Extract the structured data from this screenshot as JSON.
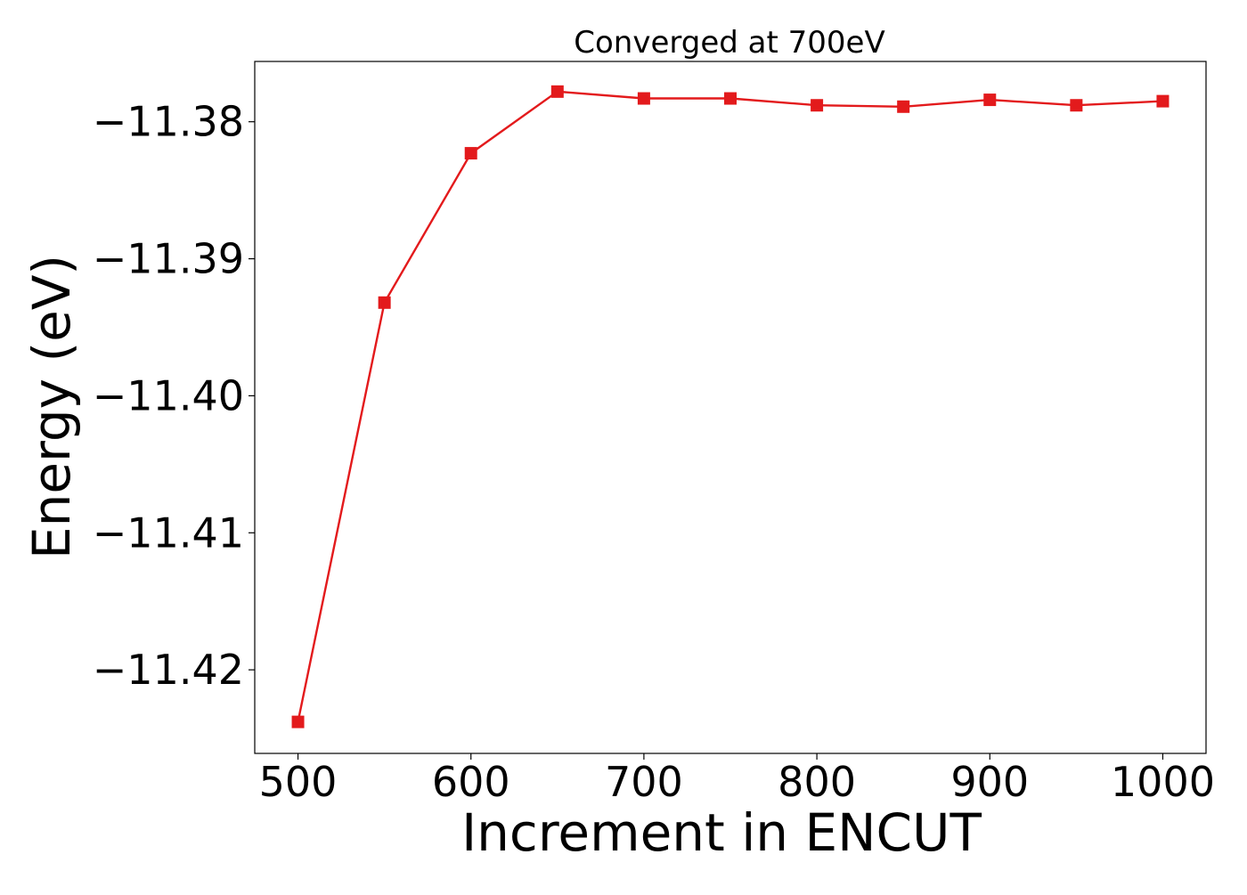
{
  "chart_data": {
    "type": "line",
    "title": "Converged at 700eV",
    "xlabel": "Increment in ENCUT",
    "ylabel": "Energy (eV)",
    "xlim": [
      475,
      1025
    ],
    "ylim": [
      -11.4261,
      -11.3756
    ],
    "x_ticks": [
      500,
      600,
      700,
      800,
      900,
      1000
    ],
    "x_tick_labels": [
      "500",
      "600",
      "700",
      "800",
      "900",
      "1000"
    ],
    "y_ticks": [
      -11.38,
      -11.39,
      -11.4,
      -11.41,
      -11.42
    ],
    "y_tick_labels": [
      "−11.38",
      "−11.39",
      "−11.40",
      "−11.41",
      "−11.42"
    ],
    "grid": false,
    "legend": false,
    "series": [
      {
        "color": "#e31a1c",
        "marker": "square",
        "x": [
          500,
          550,
          600,
          650,
          700,
          750,
          800,
          850,
          900,
          950,
          1000
        ],
        "y": [
          -11.4238,
          -11.3932,
          -11.3823,
          -11.3778,
          -11.3783,
          -11.3783,
          -11.3788,
          -11.3789,
          -11.3784,
          -11.3788,
          -11.3785
        ]
      }
    ]
  }
}
